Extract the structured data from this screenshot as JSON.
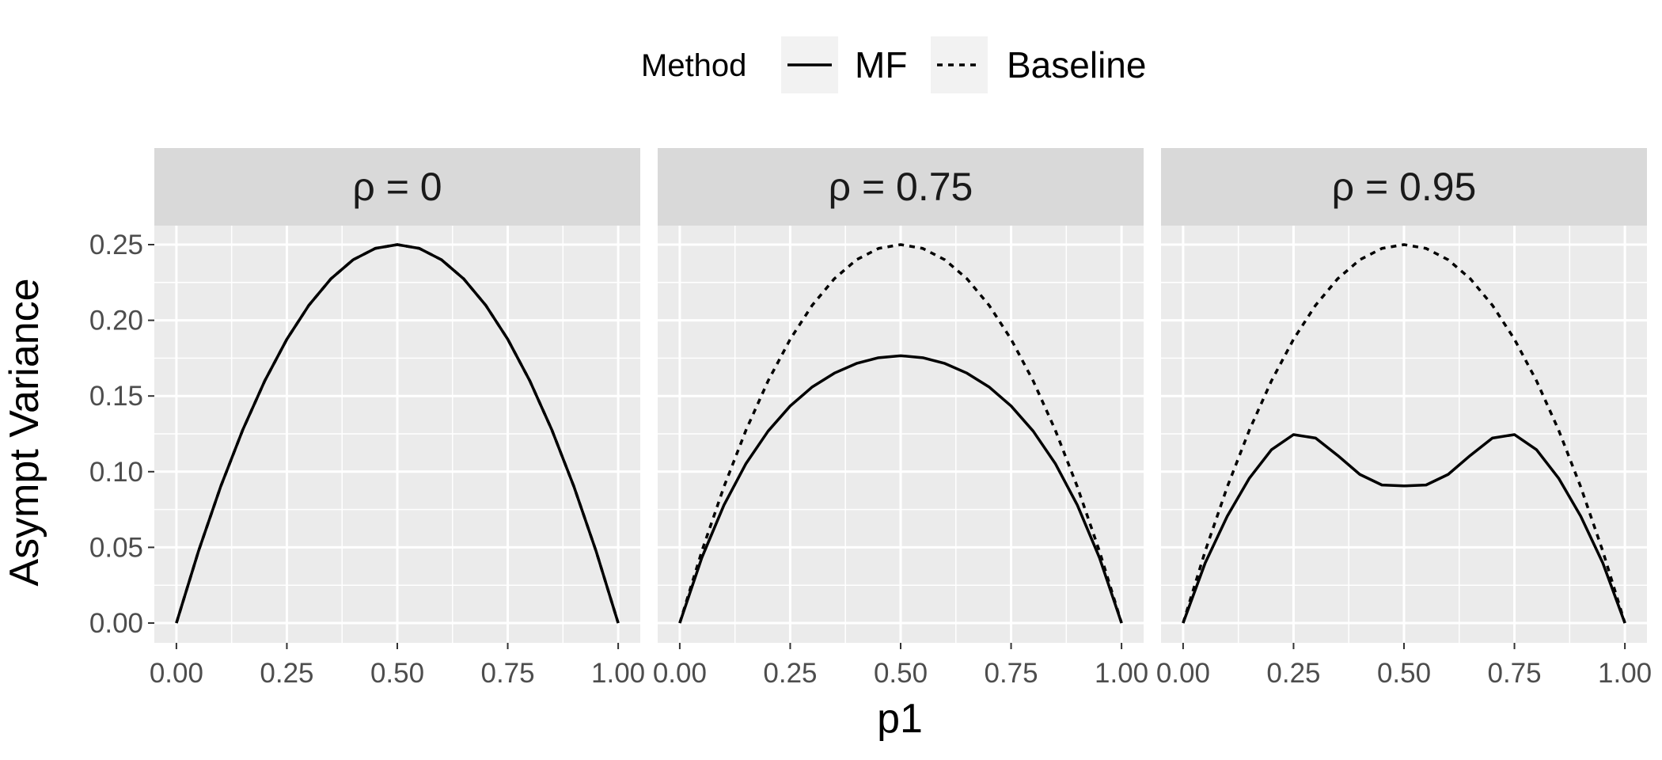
{
  "chart_data": {
    "type": "line",
    "xlabel": "p1",
    "ylabel": "Asympt Variance",
    "xlim": [
      0,
      1
    ],
    "ylim": [
      0,
      0.25
    ],
    "x_ticks": [
      "0.00",
      "0.25",
      "0.50",
      "0.75",
      "1.00"
    ],
    "y_ticks": [
      "0.00",
      "0.05",
      "0.10",
      "0.15",
      "0.20",
      "0.25"
    ],
    "grid": true,
    "legend": {
      "title": "Method",
      "position": "top",
      "entries": [
        {
          "label": "MF",
          "linestyle": "solid"
        },
        {
          "label": "Baseline",
          "linestyle": "dotted"
        }
      ]
    },
    "x": [
      0,
      0.05,
      0.1,
      0.15,
      0.2,
      0.25,
      0.3,
      0.35,
      0.4,
      0.45,
      0.5,
      0.55,
      0.6,
      0.65,
      0.7,
      0.75,
      0.8,
      0.85,
      0.9,
      0.95,
      1
    ],
    "panels": [
      {
        "label": "ρ = 0",
        "series": [
          {
            "name": "MF",
            "values": [
              0,
              0.0475,
              0.09,
              0.1275,
              0.16,
              0.1875,
              0.21,
              0.2275,
              0.24,
              0.2475,
              0.25,
              0.2475,
              0.24,
              0.2275,
              0.21,
              0.1875,
              0.16,
              0.1275,
              0.09,
              0.0475,
              0
            ]
          },
          {
            "name": "Baseline",
            "values": [
              0,
              0.0475,
              0.09,
              0.1275,
              0.16,
              0.1875,
              0.21,
              0.2275,
              0.24,
              0.2475,
              0.25,
              0.2475,
              0.24,
              0.2275,
              0.21,
              0.1875,
              0.16,
              0.1275,
              0.09,
              0.0475,
              0
            ]
          }
        ]
      },
      {
        "label": "ρ = 0.75",
        "series": [
          {
            "name": "MF",
            "values": [
              0,
              0.0432,
              0.0779,
              0.1054,
              0.1268,
              0.1434,
              0.156,
              0.1651,
              0.1715,
              0.1753,
              0.1766,
              0.1753,
              0.1715,
              0.1651,
              0.156,
              0.1434,
              0.1268,
              0.1054,
              0.0779,
              0.0432,
              0
            ]
          },
          {
            "name": "Baseline",
            "values": [
              0,
              0.0475,
              0.09,
              0.1275,
              0.16,
              0.1875,
              0.21,
              0.2275,
              0.24,
              0.2475,
              0.25,
              0.2475,
              0.24,
              0.2275,
              0.21,
              0.1875,
              0.16,
              0.1275,
              0.09,
              0.0475,
              0
            ]
          }
        ]
      },
      {
        "label": "ρ = 0.95",
        "series": [
          {
            "name": "MF",
            "values": [
              0,
              0.0397,
              0.0706,
              0.0957,
              0.1145,
              0.1245,
              0.1222,
              0.1107,
              0.0982,
              0.0912,
              0.0906,
              0.0912,
              0.0982,
              0.1107,
              0.1222,
              0.1245,
              0.1145,
              0.0957,
              0.0706,
              0.0397,
              0
            ]
          },
          {
            "name": "Baseline",
            "values": [
              0,
              0.0475,
              0.09,
              0.1275,
              0.16,
              0.1875,
              0.21,
              0.2275,
              0.24,
              0.2475,
              0.25,
              0.2475,
              0.24,
              0.2275,
              0.21,
              0.1875,
              0.16,
              0.1275,
              0.09,
              0.0475,
              0
            ]
          }
        ]
      }
    ]
  }
}
